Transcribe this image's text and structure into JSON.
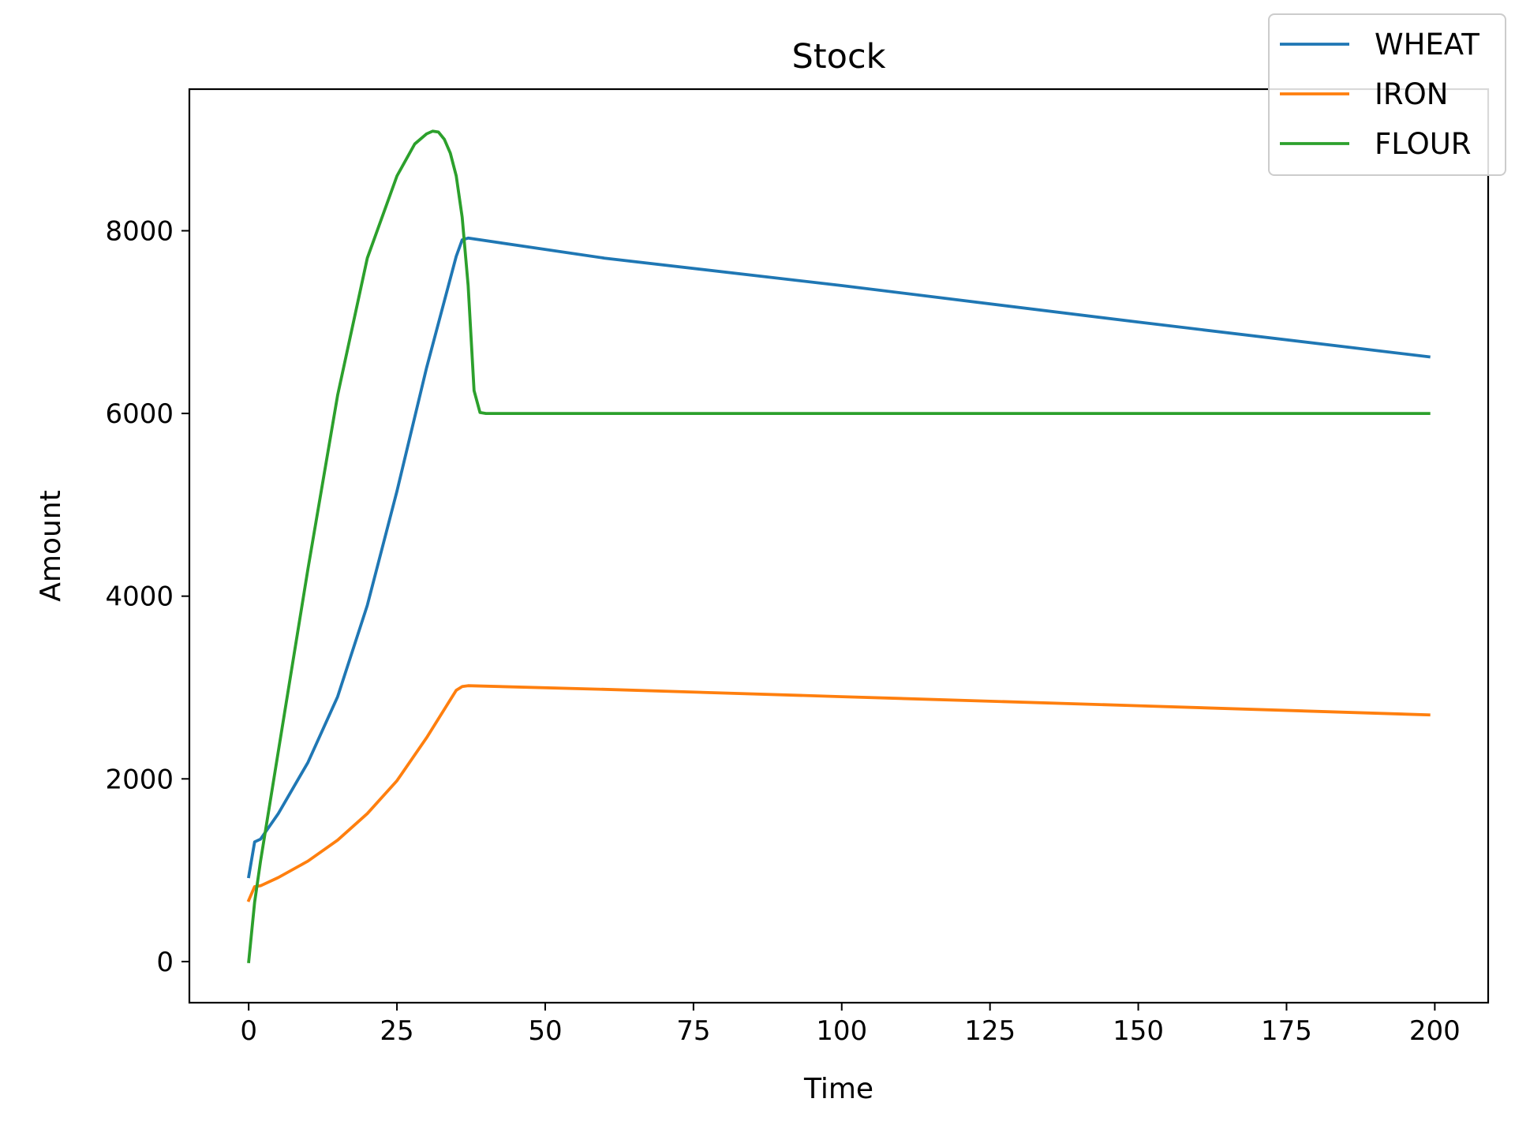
{
  "chart_data": {
    "type": "line",
    "title": "Stock",
    "xlabel": "Time",
    "ylabel": "Amount",
    "xlim": [
      -10,
      209
    ],
    "ylim": [
      -450,
      9550
    ],
    "xticks": [
      0,
      25,
      50,
      75,
      100,
      125,
      150,
      175,
      200
    ],
    "yticks": [
      0,
      2000,
      4000,
      6000,
      8000
    ],
    "grid": false,
    "legend_position": "top-right",
    "series": [
      {
        "name": "WHEAT",
        "color": "#1f77b4",
        "points": [
          [
            0,
            930
          ],
          [
            1,
            1310
          ],
          [
            2,
            1340
          ],
          [
            5,
            1620
          ],
          [
            10,
            2180
          ],
          [
            15,
            2900
          ],
          [
            20,
            3900
          ],
          [
            25,
            5150
          ],
          [
            30,
            6500
          ],
          [
            35,
            7720
          ],
          [
            36,
            7900
          ],
          [
            37,
            7920
          ],
          [
            60,
            7700
          ],
          [
            100,
            7400
          ],
          [
            150,
            7000
          ],
          [
            199,
            6620
          ]
        ]
      },
      {
        "name": "IRON",
        "color": "#ff7f0e",
        "points": [
          [
            0,
            670
          ],
          [
            1,
            820
          ],
          [
            2,
            830
          ],
          [
            5,
            920
          ],
          [
            10,
            1100
          ],
          [
            15,
            1330
          ],
          [
            20,
            1620
          ],
          [
            25,
            1980
          ],
          [
            30,
            2450
          ],
          [
            35,
            2970
          ],
          [
            36,
            3010
          ],
          [
            37,
            3020
          ],
          [
            60,
            2980
          ],
          [
            100,
            2900
          ],
          [
            150,
            2800
          ],
          [
            199,
            2700
          ]
        ]
      },
      {
        "name": "FLOUR",
        "color": "#2ca02c",
        "points": [
          [
            0,
            0
          ],
          [
            1,
            650
          ],
          [
            2,
            1100
          ],
          [
            5,
            2300
          ],
          [
            10,
            4300
          ],
          [
            15,
            6200
          ],
          [
            20,
            7700
          ],
          [
            25,
            8600
          ],
          [
            28,
            8950
          ],
          [
            30,
            9060
          ],
          [
            31,
            9090
          ],
          [
            32,
            9080
          ],
          [
            33,
            9000
          ],
          [
            34,
            8850
          ],
          [
            35,
            8600
          ],
          [
            36,
            8150
          ],
          [
            37,
            7400
          ],
          [
            38,
            6250
          ],
          [
            39,
            6010
          ],
          [
            40,
            6000
          ],
          [
            199,
            6000
          ]
        ]
      }
    ]
  }
}
